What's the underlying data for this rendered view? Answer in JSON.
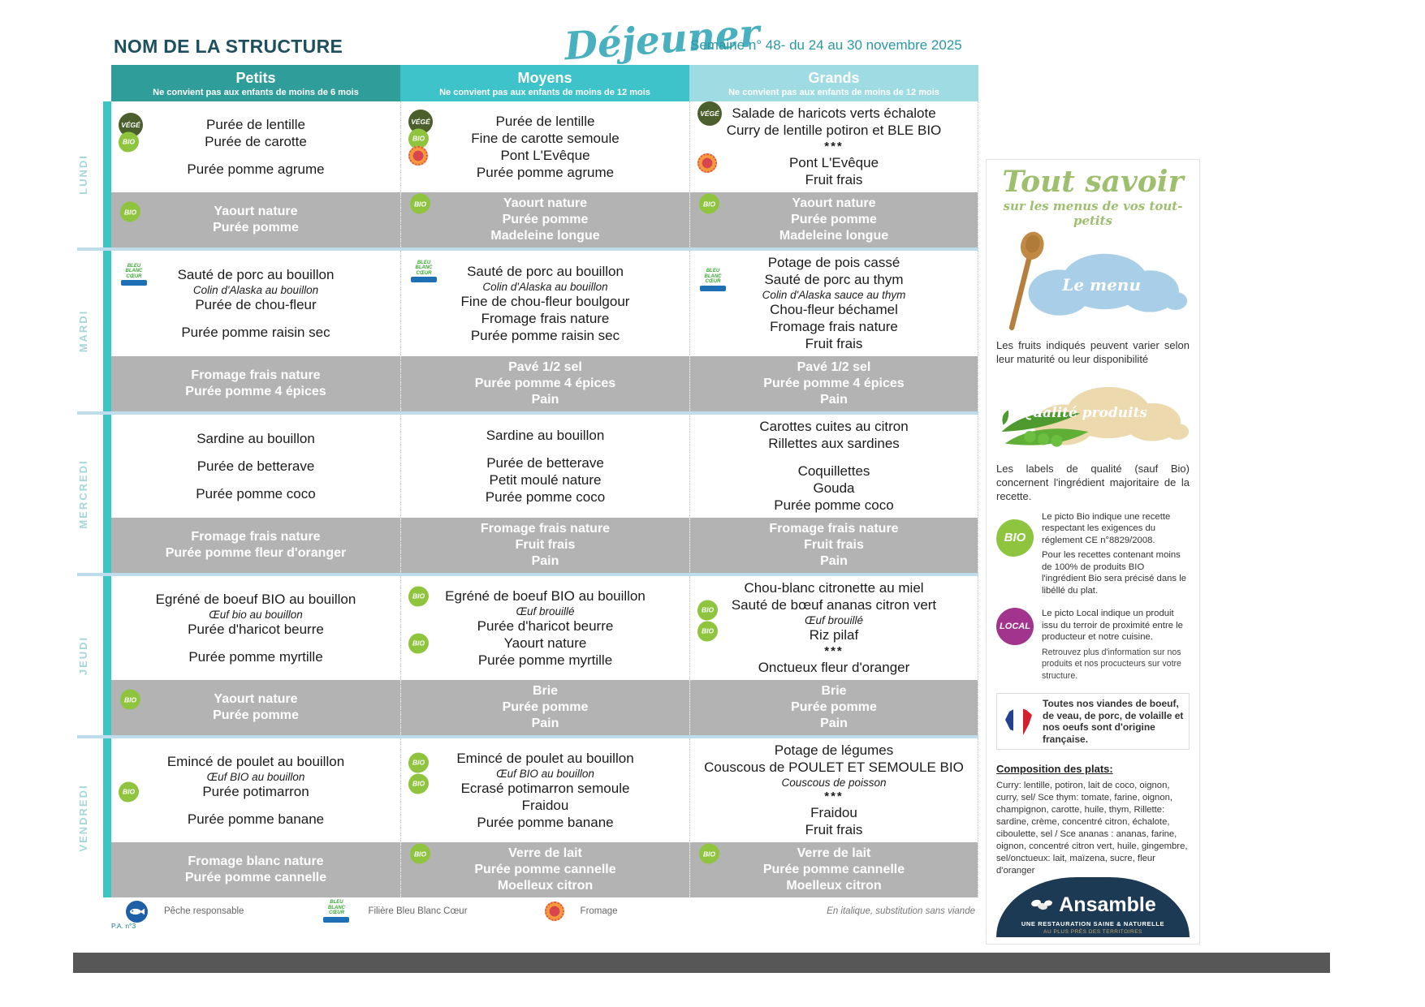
{
  "header": {
    "structure_name": "NOM DE LA STRUCTURE",
    "meal_title": "Déjeuner",
    "week_label": "Semaine n° 48- du 24 au 30 novembre 2025"
  },
  "columns": [
    {
      "label": "Petits",
      "note": "Ne convient pas aux enfants de moins de 6 mois"
    },
    {
      "label": "Moyens",
      "note": "Ne convient pas aux enfants de moins de 12 mois"
    },
    {
      "label": "Grands",
      "note": "Ne convient pas aux enfants de moins de 12 mois"
    }
  ],
  "days": [
    {
      "name": "LUNDI",
      "cells": [
        {
          "items": [
            {
              "text": "Purée de lentille",
              "icons": [
                "vege"
              ]
            },
            {
              "text": "Purée de carotte",
              "icons": [
                "bio"
              ]
            },
            {
              "text": ""
            },
            {
              "text": "Purée pomme agrume"
            }
          ],
          "snack": [
            {
              "text": "Yaourt nature",
              "icons": [
                "bio"
              ]
            },
            {
              "text": "Purée pomme"
            }
          ]
        },
        {
          "items": [
            {
              "text": "Purée de lentille",
              "icons": [
                "vege"
              ]
            },
            {
              "text": "Fine de carotte semoule",
              "icons": [
                "bio"
              ]
            },
            {
              "text": "Pont L'Evêque",
              "icons": [
                "aop"
              ]
            },
            {
              "text": "Purée pomme agrume"
            }
          ],
          "snack": [
            {
              "text": "Yaourt nature",
              "icons": [
                "bio"
              ]
            },
            {
              "text": "Purée pomme"
            },
            {
              "text": "Madeleine longue"
            }
          ]
        },
        {
          "items": [
            {
              "text": "Salade de haricots verts échalote",
              "icons": [
                "vege"
              ]
            },
            {
              "text": "Curry de lentille potiron et BLE BIO"
            },
            {
              "text": "***"
            },
            {
              "text": "Pont L'Evêque",
              "icons": [
                "aop"
              ]
            },
            {
              "text": "Fruit frais"
            }
          ],
          "snack": [
            {
              "text": "Yaourt nature",
              "icons": [
                "bio"
              ]
            },
            {
              "text": "Purée pomme"
            },
            {
              "text": "Madeleine longue"
            }
          ]
        }
      ]
    },
    {
      "name": "MARDI",
      "cells": [
        {
          "items": [
            {
              "text": "Sauté de porc au bouillon",
              "icons": [
                "bbc"
              ]
            },
            {
              "text": "Colin d'Alaska au bouillon",
              "style": "italic"
            },
            {
              "text": "Purée de chou-fleur"
            },
            {
              "text": ""
            },
            {
              "text": "Purée pomme raisin sec"
            }
          ],
          "snack": [
            {
              "text": "Fromage frais nature"
            },
            {
              "text": "Purée pomme 4 épices"
            }
          ]
        },
        {
          "items": [
            {
              "text": "Sauté de porc au bouillon",
              "icons": [
                "bbc"
              ]
            },
            {
              "text": "Colin d'Alaska au bouillon",
              "style": "italic"
            },
            {
              "text": "Fine de chou-fleur boulgour"
            },
            {
              "text": "Fromage frais nature"
            },
            {
              "text": "Purée pomme raisin sec"
            }
          ],
          "snack": [
            {
              "text": "Pavé 1/2 sel"
            },
            {
              "text": "Purée pomme 4 épices"
            },
            {
              "text": "Pain"
            }
          ]
        },
        {
          "items": [
            {
              "text": "Potage de pois cassé"
            },
            {
              "text": "Sauté de porc au thym",
              "icons": [
                "bbc"
              ]
            },
            {
              "text": "Colin d'Alaska sauce au thym",
              "style": "italic"
            },
            {
              "text": "Chou-fleur béchamel"
            },
            {
              "text": "Fromage frais nature"
            },
            {
              "text": "Fruit frais"
            }
          ],
          "snack": [
            {
              "text": "Pavé 1/2 sel"
            },
            {
              "text": "Purée pomme 4 épices"
            },
            {
              "text": "Pain"
            }
          ]
        }
      ]
    },
    {
      "name": "MERCREDI",
      "cells": [
        {
          "items": [
            {
              "text": "Sardine au bouillon"
            },
            {
              "text": ""
            },
            {
              "text": "Purée de betterave"
            },
            {
              "text": ""
            },
            {
              "text": "Purée pomme coco"
            }
          ],
          "snack": [
            {
              "text": "Fromage frais nature"
            },
            {
              "text": "Purée pomme fleur d'oranger"
            }
          ]
        },
        {
          "items": [
            {
              "text": "Sardine au bouillon"
            },
            {
              "text": ""
            },
            {
              "text": "Purée de betterave"
            },
            {
              "text": "Petit moulé nature"
            },
            {
              "text": "Purée pomme coco"
            }
          ],
          "snack": [
            {
              "text": "Fromage frais nature"
            },
            {
              "text": "Fruit frais"
            },
            {
              "text": "Pain"
            }
          ]
        },
        {
          "items": [
            {
              "text": "Carottes cuites au citron"
            },
            {
              "text": "Rillettes aux sardines"
            },
            {
              "text": ""
            },
            {
              "text": "Coquillettes"
            },
            {
              "text": "Gouda"
            },
            {
              "text": "Purée pomme coco"
            }
          ],
          "snack": [
            {
              "text": "Fromage frais nature"
            },
            {
              "text": "Fruit frais"
            },
            {
              "text": "Pain"
            }
          ]
        }
      ]
    },
    {
      "name": "JEUDI",
      "cells": [
        {
          "items": [
            {
              "text": "Egréné de boeuf BIO au bouillon"
            },
            {
              "text": "Œuf bio au bouillon",
              "style": "italic"
            },
            {
              "text": "Purée d'haricot beurre"
            },
            {
              "text": ""
            },
            {
              "text": "Purée pomme myrtille"
            }
          ],
          "snack": [
            {
              "text": "Yaourt nature",
              "icons": [
                "bio"
              ]
            },
            {
              "text": "Purée pomme"
            }
          ]
        },
        {
          "items": [
            {
              "text": "Egréné de boeuf BIO au bouillon",
              "icons": [
                "bio"
              ]
            },
            {
              "text": "Œuf brouillé",
              "style": "italic"
            },
            {
              "text": "Purée d'haricot beurre"
            },
            {
              "text": "Yaourt nature",
              "icons": [
                "bio"
              ]
            },
            {
              "text": "Purée pomme myrtille"
            }
          ],
          "snack": [
            {
              "text": "Brie"
            },
            {
              "text": "Purée pomme"
            },
            {
              "text": "Pain"
            }
          ]
        },
        {
          "items": [
            {
              "text": "Chou-blanc citronette au miel"
            },
            {
              "text": "Sauté de bœuf ananas citron vert"
            },
            {
              "text": "Œuf brouillé",
              "style": "italic",
              "icons": [
                "bio",
                "bio"
              ]
            },
            {
              "text": "Riz pilaf"
            },
            {
              "text": "***"
            },
            {
              "text": "Onctueux fleur d'oranger"
            }
          ],
          "snack": [
            {
              "text": "Brie"
            },
            {
              "text": "Purée pomme"
            },
            {
              "text": "Pain"
            }
          ]
        }
      ]
    },
    {
      "name": "VENDREDI",
      "cells": [
        {
          "items": [
            {
              "text": "Emincé de poulet au bouillon"
            },
            {
              "text": "Œuf BIO au bouillon",
              "style": "italic"
            },
            {
              "text": "Purée potimarron",
              "icons": [
                "bio"
              ]
            },
            {
              "text": ""
            },
            {
              "text": "Purée pomme banane"
            }
          ],
          "snack": [
            {
              "text": "Fromage blanc nature"
            },
            {
              "text": "Purée pomme cannelle"
            }
          ]
        },
        {
          "items": [
            {
              "text": "Emincé de poulet au bouillon"
            },
            {
              "text": "Œuf BIO au bouillon",
              "style": "italic",
              "icons": [
                "bio",
                "bio"
              ]
            },
            {
              "text": "Ecrasé potimarron semoule"
            },
            {
              "text": "Fraidou"
            },
            {
              "text": "Purée pomme banane"
            }
          ],
          "snack": [
            {
              "text": "Verre de lait",
              "icons": [
                "bio"
              ]
            },
            {
              "text": "Purée pomme cannelle"
            },
            {
              "text": "Moelleux citron"
            }
          ]
        },
        {
          "items": [
            {
              "text": "Potage de légumes"
            },
            {
              "text": "Couscous de POULET ET SEMOULE BIO"
            },
            {
              "text": "Couscous de poisson",
              "style": "italic"
            },
            {
              "text": "***"
            },
            {
              "text": "Fraidou"
            },
            {
              "text": "Fruit frais"
            }
          ],
          "snack": [
            {
              "text": "Verre de lait",
              "icons": [
                "bio"
              ]
            },
            {
              "text": "Purée pomme cannelle"
            },
            {
              "text": "Moelleux citron"
            }
          ]
        }
      ]
    }
  ],
  "legend": {
    "items": [
      {
        "icon": "fish",
        "label": "Pêche responsable"
      },
      {
        "icon": "bbc",
        "label": "Filière Bleu Blanc Cœur"
      },
      {
        "icon": "aop",
        "label": "Fromage"
      }
    ],
    "italic_note": "En italique, substitution sans viande",
    "page_ref": "P.A. n°3"
  },
  "icons": {
    "vege_label": "VÉGÉ",
    "bio_label": "BIO",
    "local_label": "LOCAL",
    "bbc_lines": [
      "BLEU",
      "BLANC",
      "CŒUR"
    ]
  },
  "sidebar": {
    "tout_savoir_title": "Tout savoir",
    "tout_savoir_sub": "sur les menus de vos tout-petits",
    "menu_cloud": "Le menu",
    "fruits_note": "Les fruits indiqués peuvent varier selon leur maturité ou leur disponibilité",
    "quality_cloud": "Qualité produits",
    "quality_note": "Les labels de qualité (sauf Bio) concernent l'ingrédient majoritaire de la recette.",
    "bio_text_1": "Le picto Bio indique une recette respectant les exigences du réglement CE n°8829/2008.",
    "bio_text_2": "Pour les recettes contenant moins de 100% de produits BIO l'ingrédient Bio sera précisé dans le libéllé du plat.",
    "local_text_1": "Le picto Local indique un produit issu du terroir de proximité entre le producteur et notre cuisine.",
    "local_text_2": "Retrouvez plus d'information sur nos produits et nos procucteurs sur votre structure.",
    "france_text": "Toutes nos viandes de boeuf, de veau, de porc, de volaille et nos oeufs sont d'origine française.",
    "composition_title": "Composition des plats:",
    "composition_text": "Curry: lentille, potiron, lait de coco, oignon, curry, sel/ Sce thym: tomate, farine, oignon, champignon, carotte, huile, thym, Rillette: sardine, crème, concentré citron, échalote, ciboulette, sel / Sce ananas : ananas, farine, oignon, concentré citron vert, huile, gingembre, sel/onctueux: lait, maïzena, sucre, fleur d'oranger",
    "brand_name": "Ansamble",
    "brand_tagline_1": "UNE RESTAURATION SAINE & NATURELLE",
    "brand_tagline_2": "AU PLUS PRÈS DES TERRITOIRES"
  },
  "colors": {
    "teal_dark": "#2f9e9a",
    "teal_mid": "#3fc3ca",
    "teal_light": "#9fdbe2",
    "accent_strip": "#3bc5c3",
    "gray_band": "#b3b3b3",
    "bio_green": "#8fc43e",
    "vege_green": "#4b5f2d",
    "local_purple": "#a2348e",
    "brand_navy": "#1d3a54"
  }
}
